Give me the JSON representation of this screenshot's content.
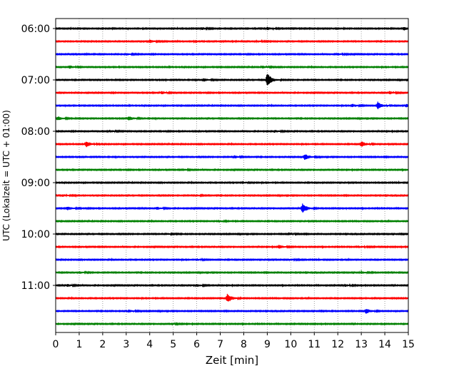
{
  "chart_data": {
    "type": "line",
    "title": "",
    "xlabel": "Zeit  [min]",
    "ylabel": "UTC (Lokalzeit = UTC + 01:00)",
    "xlim": [
      0,
      15
    ],
    "x_ticks": [
      0,
      1,
      2,
      3,
      4,
      5,
      6,
      7,
      8,
      9,
      10,
      11,
      12,
      13,
      14,
      15
    ],
    "x_tick_labels": [
      "0",
      "1",
      "2",
      "3",
      "4",
      "5",
      "6",
      "7",
      "8",
      "9",
      "10",
      "11",
      "12",
      "13",
      "14",
      "15"
    ],
    "y_tick_labels": [
      {
        "label": "06:00",
        "trace_index": 0
      },
      {
        "label": "07:00",
        "trace_index": 4
      },
      {
        "label": "08:00",
        "trace_index": 8
      },
      {
        "label": "09:00",
        "trace_index": 12
      },
      {
        "label": "10:00",
        "trace_index": 16
      },
      {
        "label": "11:00",
        "trace_index": 20
      }
    ],
    "grid": "vertical dotted",
    "trace_interval_min": 15,
    "trace_colors": [
      "#000000",
      "#ff0000",
      "#0000ff",
      "#008000"
    ],
    "traces": [
      {
        "start": "06:00",
        "color": "#000000",
        "events": [
          {
            "t": 6.2,
            "a": 0.35
          },
          {
            "t": 9.0,
            "a": 0.4
          },
          {
            "t": 14.8,
            "a": 0.45
          }
        ]
      },
      {
        "start": "06:15",
        "color": "#ff0000",
        "events": [
          {
            "t": 4.0,
            "a": 0.4
          },
          {
            "t": 8.6,
            "a": 0.2
          }
        ]
      },
      {
        "start": "06:30",
        "color": "#0000ff",
        "events": [
          {
            "t": 3.0,
            "a": 0.25
          },
          {
            "t": 12.0,
            "a": 0.3
          }
        ]
      },
      {
        "start": "06:45",
        "color": "#008000",
        "events": [
          {
            "t": 0.6,
            "a": 0.4
          },
          {
            "t": 8.8,
            "a": 0.35
          }
        ]
      },
      {
        "start": "07:00",
        "color": "#000000",
        "events": [
          {
            "t": 6.3,
            "a": 0.45
          },
          {
            "t": 9.0,
            "a": 1.9
          }
        ]
      },
      {
        "start": "07:15",
        "color": "#ff0000",
        "events": [
          {
            "t": 4.5,
            "a": 0.35
          },
          {
            "t": 14.2,
            "a": 0.4
          }
        ]
      },
      {
        "start": "07:30",
        "color": "#0000ff",
        "events": [
          {
            "t": 12.6,
            "a": 0.45
          },
          {
            "t": 13.7,
            "a": 1.0
          },
          {
            "t": 14.9,
            "a": 0.4
          }
        ]
      },
      {
        "start": "07:45",
        "color": "#008000",
        "events": [
          {
            "t": 0.1,
            "a": 0.5
          },
          {
            "t": 3.1,
            "a": 0.6
          }
        ]
      },
      {
        "start": "08:00",
        "color": "#000000",
        "events": [
          {
            "t": 2.3,
            "a": 0.3
          },
          {
            "t": 9.3,
            "a": 0.3
          }
        ]
      },
      {
        "start": "08:15",
        "color": "#ff0000",
        "events": [
          {
            "t": 1.3,
            "a": 0.8
          },
          {
            "t": 13.0,
            "a": 0.8
          }
        ]
      },
      {
        "start": "08:30",
        "color": "#0000ff",
        "events": [
          {
            "t": 7.6,
            "a": 0.35
          },
          {
            "t": 10.6,
            "a": 0.8
          }
        ]
      },
      {
        "start": "08:45",
        "color": "#008000",
        "events": [
          {
            "t": 5.5,
            "a": 0.15
          }
        ]
      },
      {
        "start": "09:00",
        "color": "#000000",
        "events": [
          {
            "t": 8.0,
            "a": 0.15
          }
        ]
      },
      {
        "start": "09:15",
        "color": "#ff0000",
        "events": [
          {
            "t": 0.3,
            "a": 0.3
          },
          {
            "t": 6.0,
            "a": 0.2
          }
        ]
      },
      {
        "start": "09:30",
        "color": "#0000ff",
        "events": [
          {
            "t": 0.5,
            "a": 0.5
          },
          {
            "t": 4.3,
            "a": 0.4
          },
          {
            "t": 10.5,
            "a": 1.3
          }
        ]
      },
      {
        "start": "09:45",
        "color": "#008000",
        "events": [
          {
            "t": 7.0,
            "a": 0.15
          }
        ]
      },
      {
        "start": "10:00",
        "color": "#000000",
        "events": [
          {
            "t": 4.7,
            "a": 0.25
          },
          {
            "t": 9.9,
            "a": 0.3
          }
        ]
      },
      {
        "start": "10:15",
        "color": "#ff0000",
        "events": [
          {
            "t": 9.5,
            "a": 0.5
          },
          {
            "t": 13.0,
            "a": 0.2
          }
        ]
      },
      {
        "start": "10:30",
        "color": "#0000ff",
        "events": [
          {
            "t": 6.0,
            "a": 0.25
          },
          {
            "t": 10.0,
            "a": 0.2
          }
        ]
      },
      {
        "start": "10:45",
        "color": "#008000",
        "events": [
          {
            "t": 1.0,
            "a": 0.25
          },
          {
            "t": 13.0,
            "a": 0.25
          }
        ]
      },
      {
        "start": "11:00",
        "color": "#000000",
        "events": [
          {
            "t": 0.5,
            "a": 0.35
          },
          {
            "t": 6.0,
            "a": 0.35
          },
          {
            "t": 12.3,
            "a": 0.3
          }
        ]
      },
      {
        "start": "11:15",
        "color": "#ff0000",
        "events": [
          {
            "t": 7.3,
            "a": 1.2
          }
        ]
      },
      {
        "start": "11:30",
        "color": "#0000ff",
        "events": [
          {
            "t": 3.1,
            "a": 0.35
          },
          {
            "t": 13.2,
            "a": 0.7
          }
        ]
      },
      {
        "start": "11:45",
        "color": "#008000",
        "events": [
          {
            "t": 5.0,
            "a": 0.15
          }
        ]
      }
    ]
  }
}
